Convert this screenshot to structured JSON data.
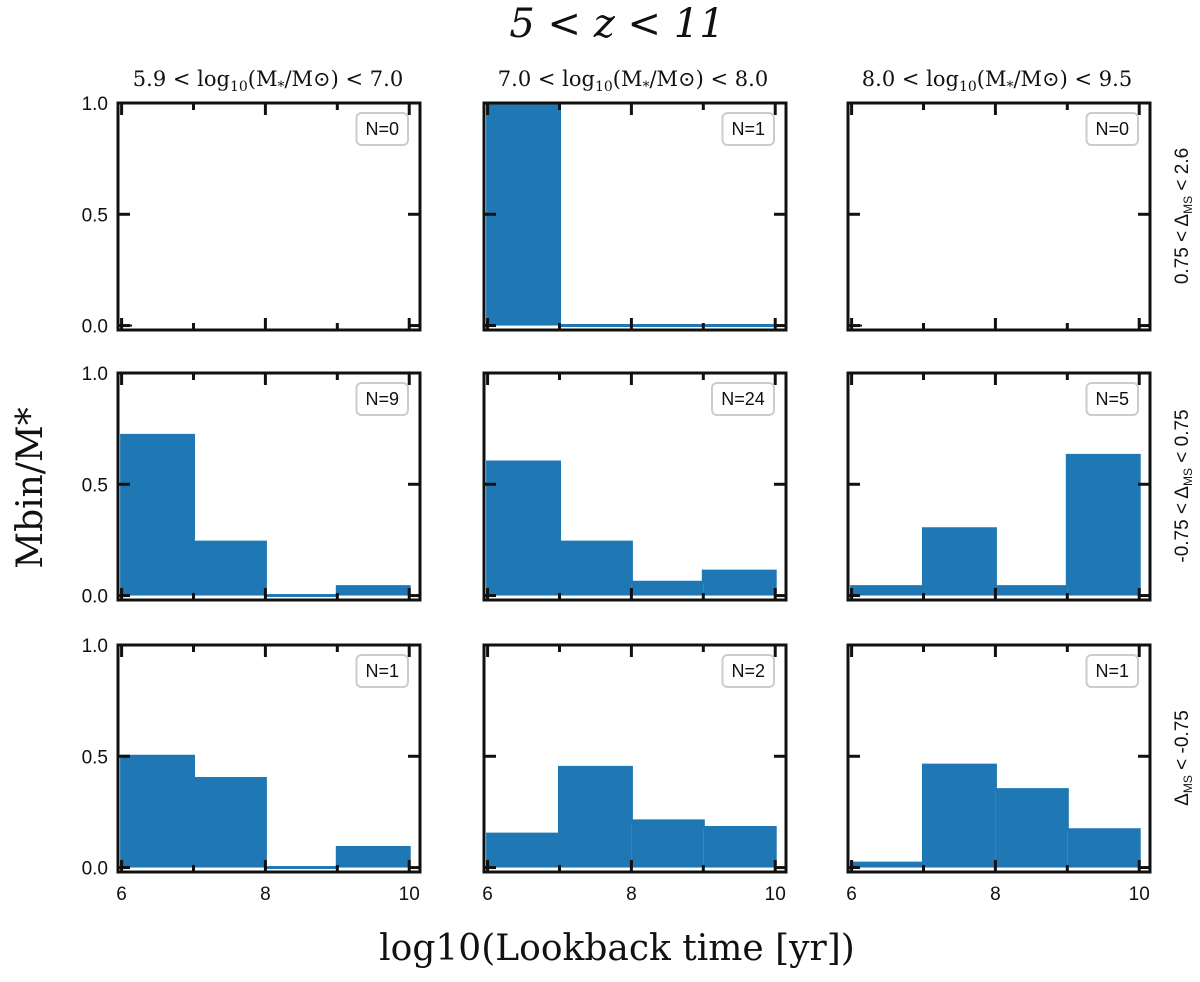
{
  "figure": {
    "title": "5 < z < 11",
    "xlabel": "log10(Lookback time [yr])",
    "ylabel": "Mbin/M*",
    "columns": [
      {
        "pre": "5.9 < log",
        "sub": "10",
        "mid": "(M",
        "sub2": "*",
        "post": "/M⊙) < 7.0"
      },
      {
        "pre": "7.0 < log",
        "sub": "10",
        "mid": "(M",
        "sub2": "*",
        "post": "/M⊙) < 8.0"
      },
      {
        "pre": "8.0 < log",
        "sub": "10",
        "mid": "(M",
        "sub2": "*",
        "post": "/M⊙) < 9.5"
      }
    ],
    "rows": [
      {
        "pre": "0.75 < Δ",
        "sub": "MS",
        "post": " < 2.6"
      },
      {
        "pre": "-0.75 < Δ",
        "sub": "MS",
        "post": " < 0.75"
      },
      {
        "pre": "Δ",
        "sub": "MS",
        "post": " < -0.75"
      }
    ]
  },
  "chart_data": {
    "type": "bar",
    "bin_edges": [
      6,
      7,
      8,
      9,
      10
    ],
    "xlim": [
      5.95,
      10.15
    ],
    "ylim": [
      -0.02,
      1.0
    ],
    "xticks": [
      "6",
      "8",
      "10"
    ],
    "xtick_values": [
      6,
      8,
      10
    ],
    "yticks": [
      "0.0",
      "0.5",
      "1.0"
    ],
    "ytick_values": [
      0,
      0.5,
      1.0
    ],
    "color": "#1f77b4",
    "panels": [
      {
        "row": 0,
        "col": 0,
        "label": "N=0",
        "values": null
      },
      {
        "row": 0,
        "col": 1,
        "label": "N=1",
        "values": [
          1.0,
          0.0,
          0.0,
          0.0
        ]
      },
      {
        "row": 0,
        "col": 2,
        "label": "N=0",
        "values": null
      },
      {
        "row": 1,
        "col": 0,
        "label": "N=9",
        "values": [
          0.72,
          0.24,
          0.0,
          0.04
        ]
      },
      {
        "row": 1,
        "col": 1,
        "label": "N=24",
        "values": [
          0.6,
          0.24,
          0.06,
          0.11
        ]
      },
      {
        "row": 1,
        "col": 2,
        "label": "N=5",
        "values": [
          0.04,
          0.3,
          0.04,
          0.63
        ]
      },
      {
        "row": 2,
        "col": 0,
        "label": "N=1",
        "values": [
          0.5,
          0.4,
          0.0,
          0.09
        ]
      },
      {
        "row": 2,
        "col": 1,
        "label": "N=2",
        "values": [
          0.15,
          0.45,
          0.21,
          0.18
        ]
      },
      {
        "row": 2,
        "col": 2,
        "label": "N=1",
        "values": [
          0.02,
          0.46,
          0.35,
          0.17
        ]
      }
    ]
  }
}
